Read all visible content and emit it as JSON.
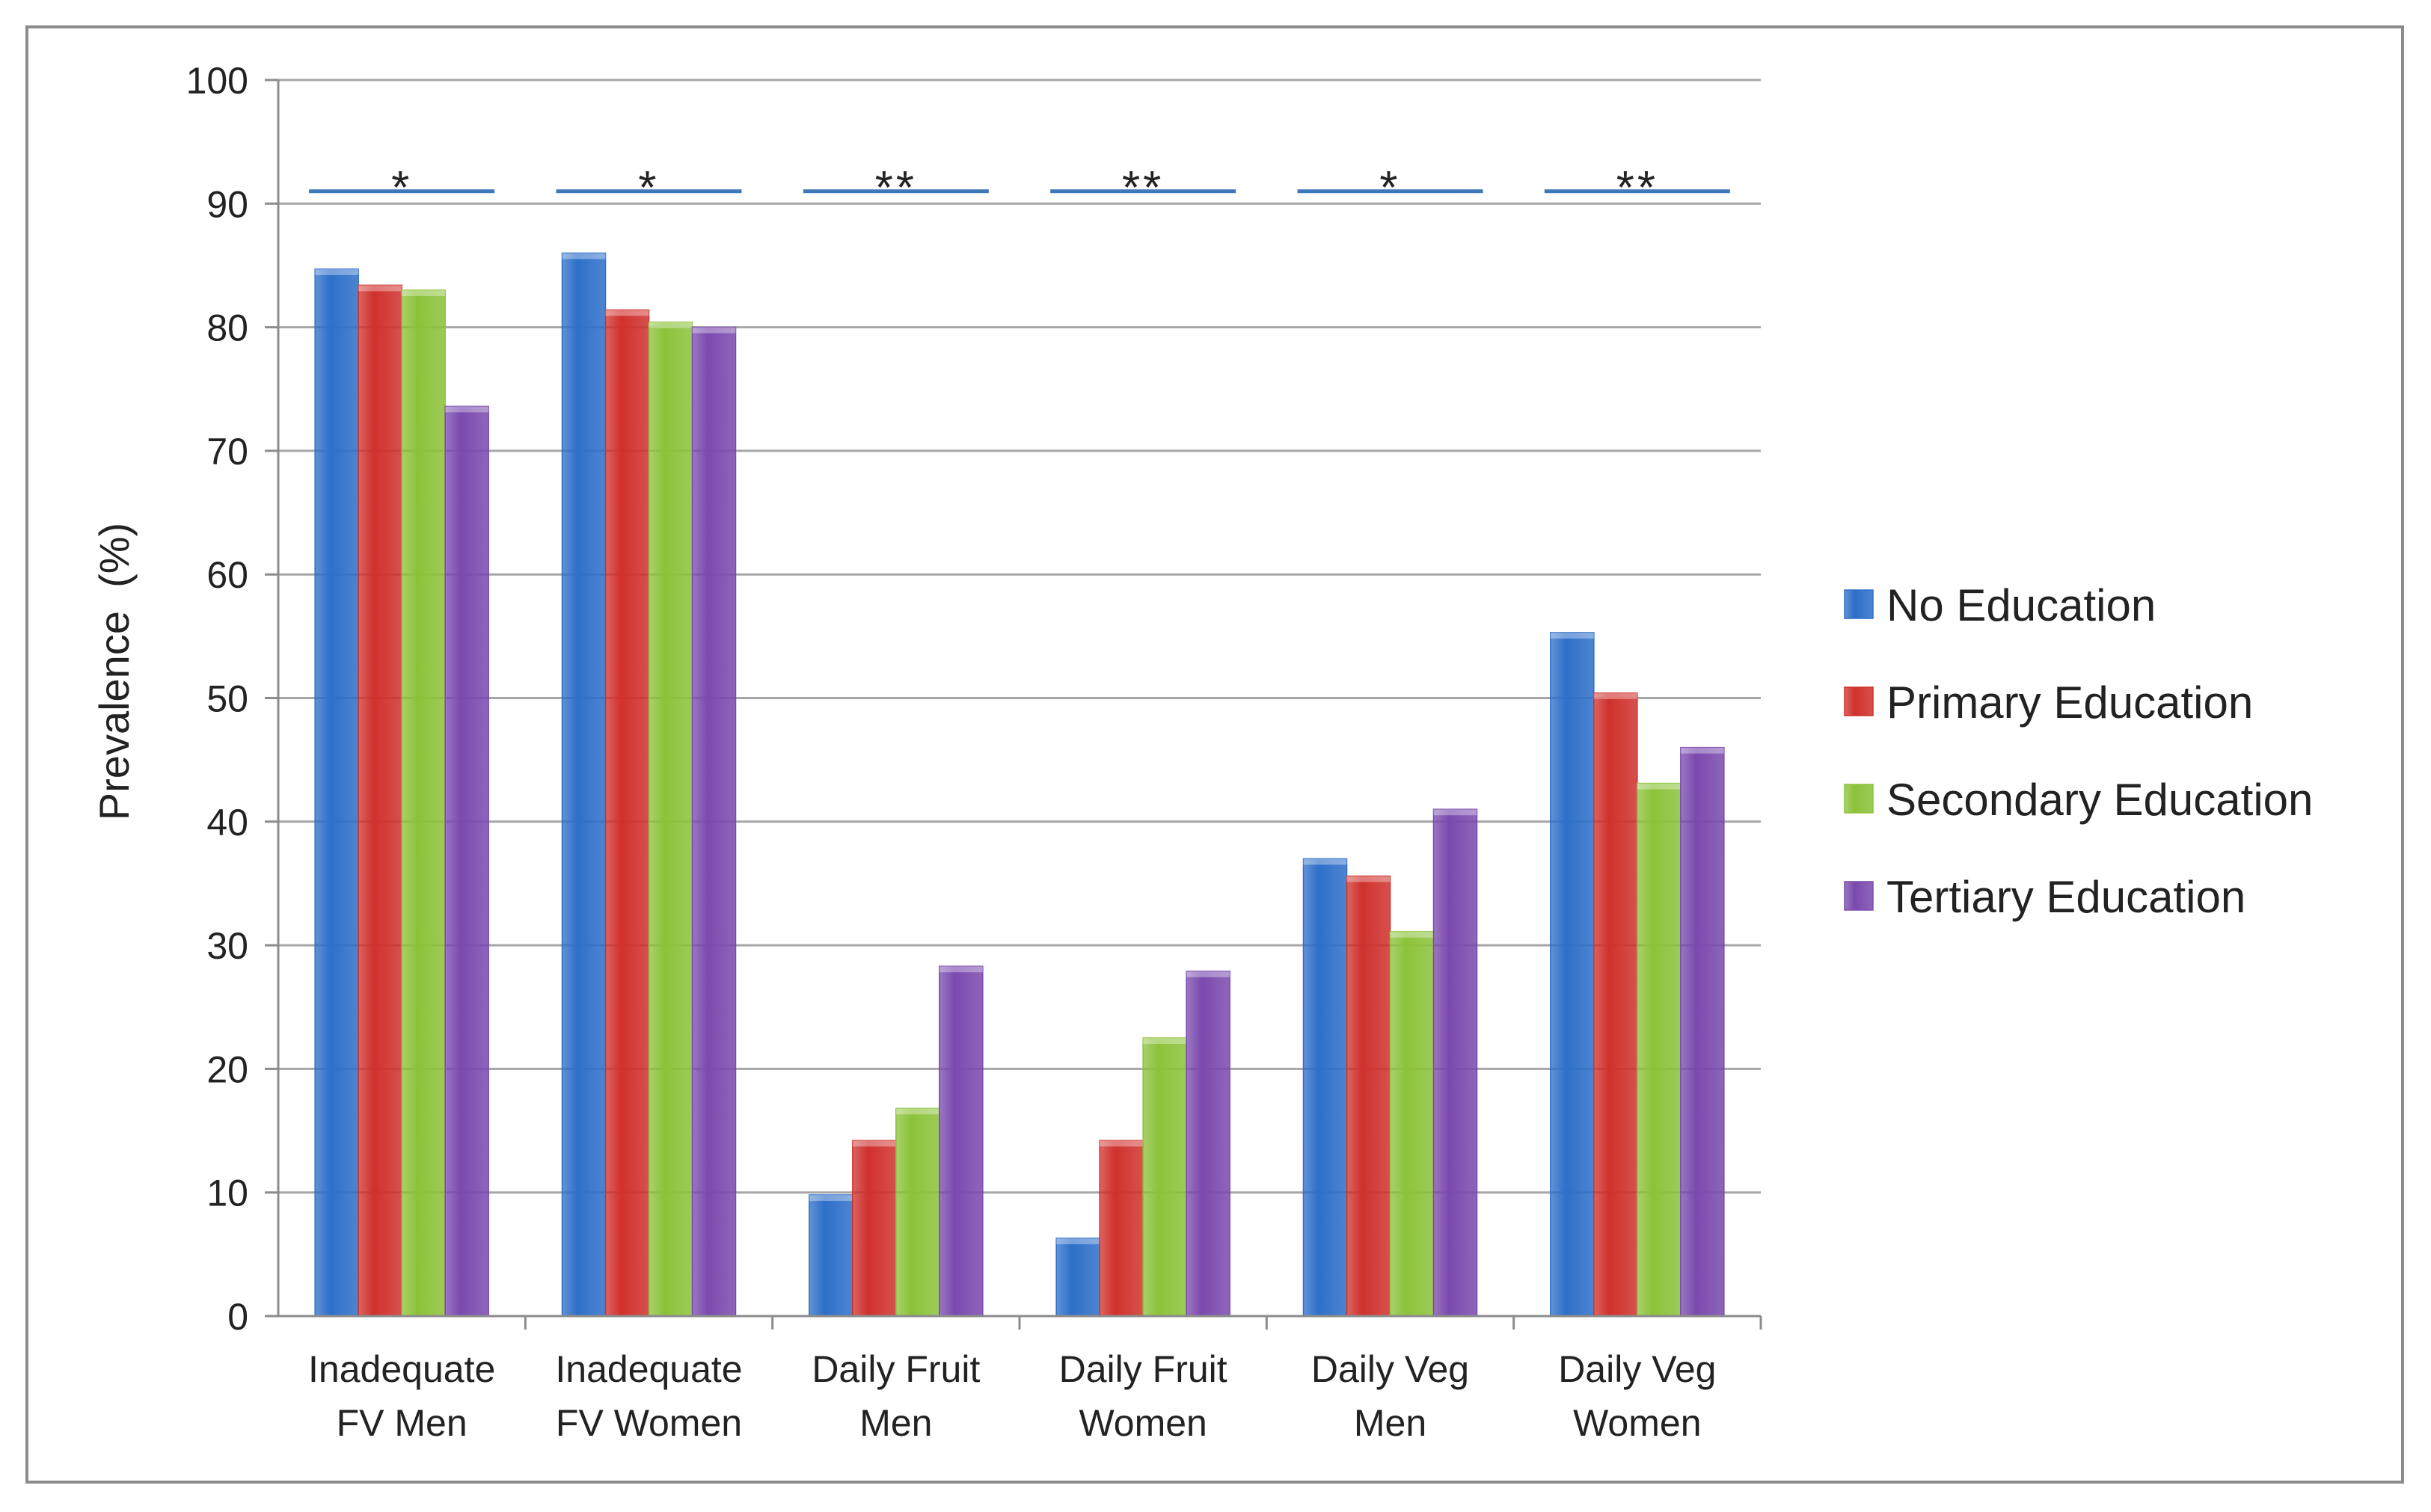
{
  "chart_data": {
    "type": "bar",
    "title": "",
    "xlabel": "",
    "ylabel": "Prevalence  (%)",
    "ylim": [
      0,
      100
    ],
    "ytick_step": 10,
    "grid": true,
    "legend_position": "right",
    "categories": [
      {
        "line1": "Inadequate",
        "line2": "FV Men"
      },
      {
        "line1": "Inadequate",
        "line2": "FV Women"
      },
      {
        "line1": "Daily Fruit",
        "line2": "Men"
      },
      {
        "line1": "Daily Fruit",
        "line2": "Women"
      },
      {
        "line1": "Daily Veg",
        "line2": "Men"
      },
      {
        "line1": "Daily Veg",
        "line2": "Women"
      }
    ],
    "series": [
      {
        "name": "No Education",
        "color": "#2e6fc9",
        "values": [
          84.7,
          86.0,
          9.8,
          6.3,
          37.0,
          55.3
        ]
      },
      {
        "name": "Primary Education",
        "color": "#d0312d",
        "values": [
          83.4,
          81.4,
          14.2,
          14.2,
          35.6,
          50.4
        ]
      },
      {
        "name": "Secondary Education",
        "color": "#8cc23a",
        "values": [
          83.0,
          80.4,
          16.8,
          22.5,
          31.1,
          43.1
        ]
      },
      {
        "name": "Tertiary Education",
        "color": "#7a4aae",
        "values": [
          73.6,
          80.0,
          28.3,
          27.9,
          41.0,
          46.0
        ]
      }
    ],
    "significance": {
      "line_value": 91,
      "color": "#3d78b8",
      "labels": [
        "*",
        "*",
        "**",
        "**",
        "*",
        "**"
      ]
    }
  }
}
